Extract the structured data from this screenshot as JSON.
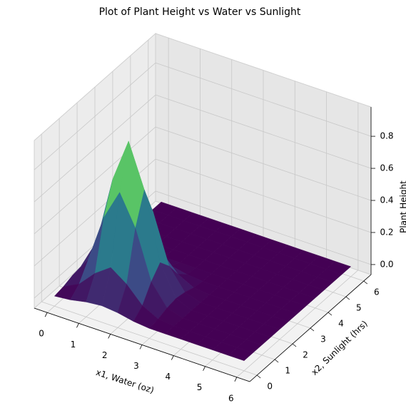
{
  "chart_data": {
    "type": "surface",
    "title": "Plot of Plant Height vs Water vs Sunlight",
    "xlabel": "x1, Water (oz)",
    "ylabel": "x2, Sunlight (hrs)",
    "zlabel": "Plant Height",
    "colormap": "viridis",
    "x": [
      0,
      0.5,
      1,
      1.5,
      2,
      2.5,
      3,
      3.5,
      4,
      4.5,
      5,
      5.5,
      6
    ],
    "y": [
      0,
      0.5,
      1,
      1.5,
      2,
      2.5,
      3,
      3.5,
      4,
      4.5,
      5,
      5.5,
      6
    ],
    "z": [
      [
        0,
        0.01,
        0.03,
        0.04,
        0.03,
        0.01,
        0,
        0,
        0,
        0,
        0,
        0,
        0
      ],
      [
        0.01,
        0.06,
        0.16,
        0.23,
        0.16,
        0.06,
        0.01,
        0,
        0,
        0,
        0,
        0,
        0
      ],
      [
        0.03,
        0.16,
        0.46,
        0.65,
        0.46,
        0.16,
        0.03,
        0,
        0,
        0,
        0,
        0,
        0
      ],
      [
        0.04,
        0.23,
        0.65,
        0.92,
        0.65,
        0.23,
        0.04,
        0,
        0,
        0,
        0,
        0,
        0
      ],
      [
        0.03,
        0.16,
        0.46,
        0.65,
        0.46,
        0.16,
        0.03,
        0,
        0,
        0,
        0,
        0,
        0
      ],
      [
        0.01,
        0.06,
        0.16,
        0.23,
        0.16,
        0.06,
        0.01,
        0,
        0,
        0,
        0,
        0,
        0
      ],
      [
        0,
        0.01,
        0.03,
        0.04,
        0.03,
        0.01,
        0,
        0,
        0,
        0,
        0,
        0,
        0
      ],
      [
        0,
        0,
        0,
        0,
        0,
        0,
        0,
        0,
        0,
        0,
        0,
        0,
        0
      ],
      [
        0,
        0,
        0,
        0,
        0,
        0,
        0,
        0,
        0,
        0,
        0,
        0,
        0
      ],
      [
        0,
        0,
        0,
        0,
        0,
        0,
        0,
        0,
        0,
        0,
        0,
        0,
        0
      ],
      [
        0,
        0,
        0,
        0,
        0,
        0,
        0,
        0,
        0,
        0,
        0,
        0,
        0
      ],
      [
        0,
        0,
        0,
        0,
        0,
        0,
        0,
        0,
        0,
        0,
        0,
        0,
        0
      ],
      [
        0,
        0,
        0,
        0,
        0,
        0,
        0,
        0,
        0,
        0,
        0,
        0,
        0
      ]
    ],
    "xlim": [
      0,
      6
    ],
    "ylim": [
      0,
      6
    ],
    "zlim": [
      0,
      0.92
    ],
    "xticks": [
      0,
      1,
      2,
      3,
      4,
      5,
      6
    ],
    "yticks": [
      0,
      1,
      2,
      3,
      4,
      5,
      6
    ],
    "zticks": [
      {
        "value": 0,
        "label": "0.0"
      },
      {
        "value": 0.2,
        "label": "0.2"
      },
      {
        "value": 0.4,
        "label": "0.4"
      },
      {
        "value": 0.6,
        "label": "0.6"
      },
      {
        "value": 0.8,
        "label": "0.8"
      }
    ],
    "grid": true
  }
}
